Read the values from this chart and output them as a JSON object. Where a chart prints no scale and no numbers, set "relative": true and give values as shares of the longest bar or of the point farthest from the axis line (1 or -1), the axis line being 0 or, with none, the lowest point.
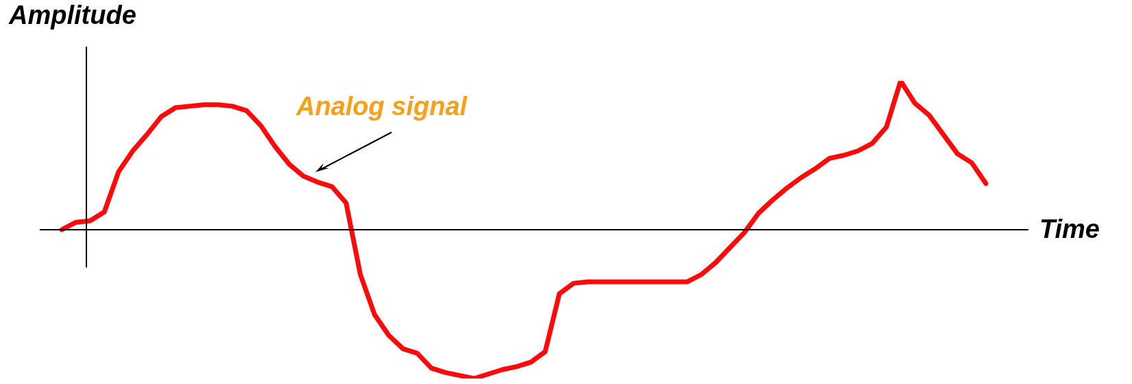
{
  "chart_data": {
    "type": "line",
    "relative": true,
    "xlabel": "Time",
    "ylabel": "Amplitude",
    "annotations": [
      "Analog signal"
    ],
    "categories": [
      null,
      null,
      null,
      null,
      null,
      null,
      null,
      null,
      null,
      null,
      null,
      null,
      null,
      null,
      null,
      null,
      null,
      null,
      null,
      null,
      null,
      null,
      null,
      null,
      null,
      null,
      null,
      null,
      null,
      null,
      null,
      null,
      null,
      null,
      null,
      null,
      null,
      null,
      null,
      null,
      null,
      null,
      null,
      null,
      null,
      null,
      null,
      null,
      null,
      null,
      null,
      null,
      null,
      null,
      null,
      null,
      null,
      null,
      null,
      null,
      null,
      null,
      null,
      null,
      null,
      null
    ],
    "series": [
      {
        "color": "#ff0a0a",
        "values": [
          0,
          0.05,
          0.06,
          0.12,
          0.39,
          0.53,
          0.64,
          0.76,
          0.82,
          0.83,
          0.84,
          0.84,
          0.83,
          0.8,
          0.7,
          0.56,
          0.44,
          0.36,
          0.32,
          0.29,
          0.18,
          -0.3,
          -0.57,
          -0.71,
          -0.8,
          -0.83,
          -0.93,
          -0.96,
          -0.98,
          -1,
          -0.97,
          -0.94,
          -0.92,
          -0.89,
          -0.82,
          -0.43,
          -0.36,
          -0.35,
          -0.35,
          -0.35,
          -0.35,
          -0.35,
          -0.35,
          -0.35,
          -0.35,
          -0.3,
          -0.22,
          -0.12,
          -0.02,
          0.11,
          0.2,
          0.28,
          0.35,
          0.41,
          0.48,
          0.5,
          0.53,
          0.58,
          0.69,
          1,
          0.85,
          0.77,
          0.64,
          0.51,
          0.45,
          0.31
        ]
      }
    ],
    "marker": "none",
    "line_style": "solid",
    "legend": false
  }
}
